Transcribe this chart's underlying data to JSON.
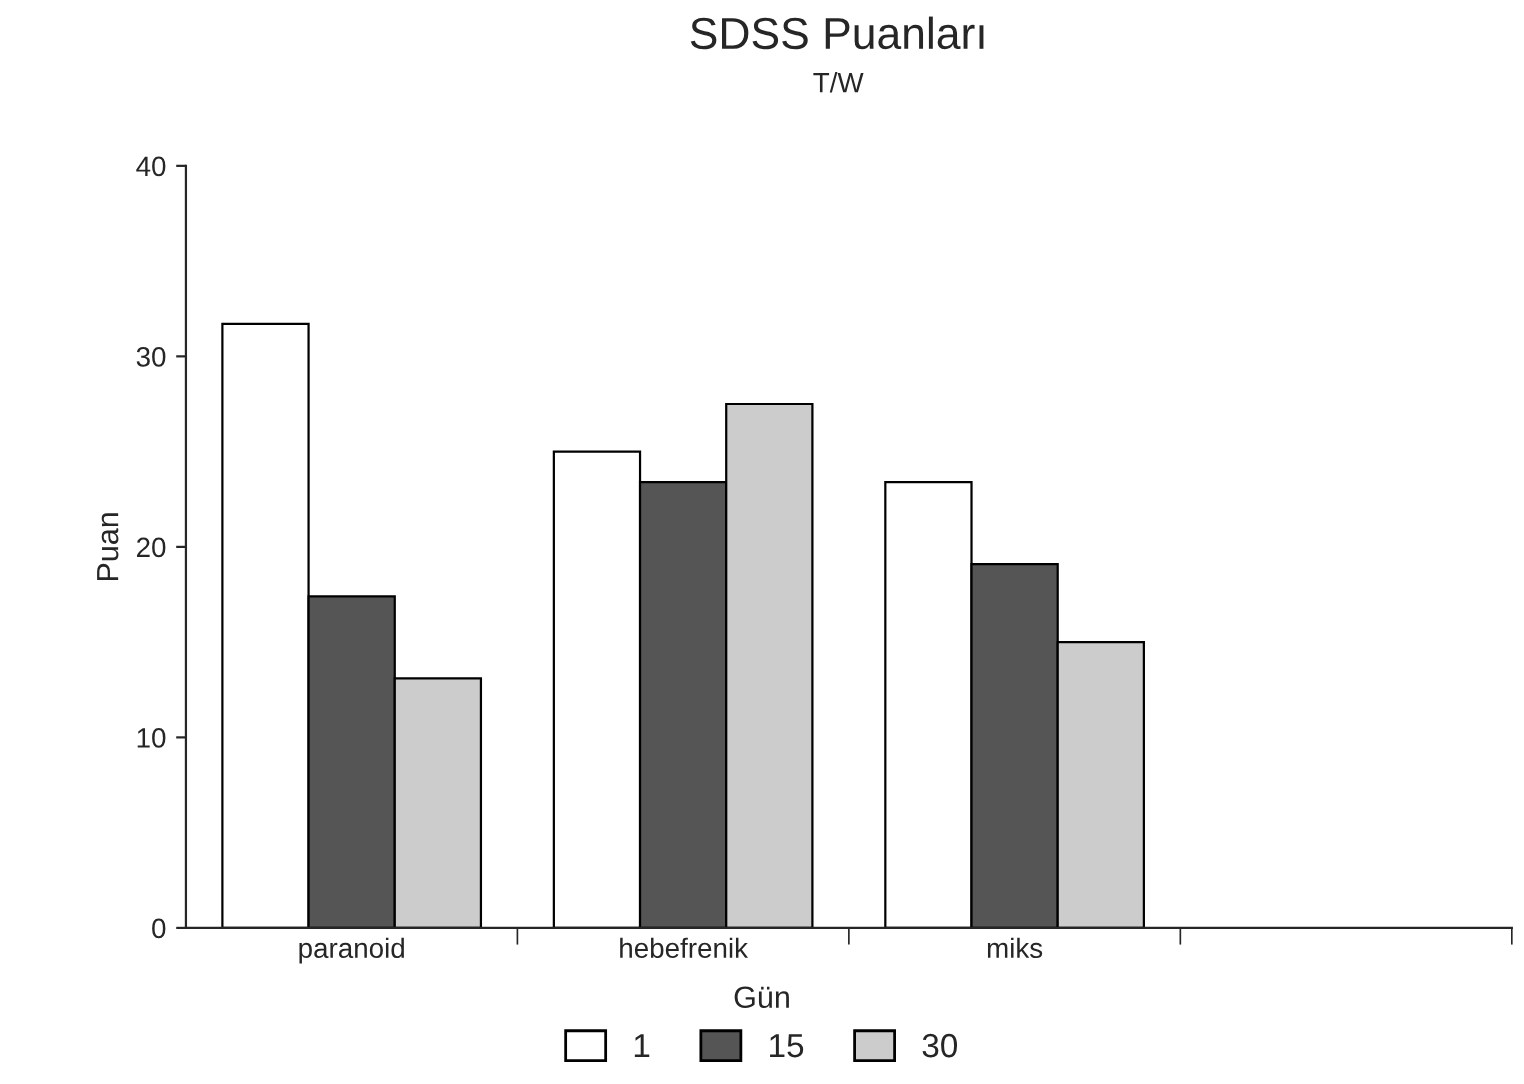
{
  "chart_data": {
    "type": "bar",
    "title": "SDSS Puanları",
    "subtitle": "T/W",
    "ylabel": "Puan",
    "legend_title": "Gün",
    "categories": [
      "paranoid",
      "hebefrenik",
      "miks",
      null
    ],
    "series": [
      {
        "name": "1",
        "color": "#ffffff",
        "values": [
          31.7,
          25.0,
          23.4,
          null
        ]
      },
      {
        "name": "15",
        "color": "#555555",
        "values": [
          17.4,
          23.4,
          19.1,
          null
        ]
      },
      {
        "name": "30",
        "color": "#cccccc",
        "values": [
          13.1,
          27.5,
          15.0,
          null
        ]
      }
    ],
    "ylim": [
      0,
      40
    ],
    "yticks": [
      0,
      10,
      20,
      30,
      40
    ],
    "grid": false,
    "legend": "bottom"
  }
}
